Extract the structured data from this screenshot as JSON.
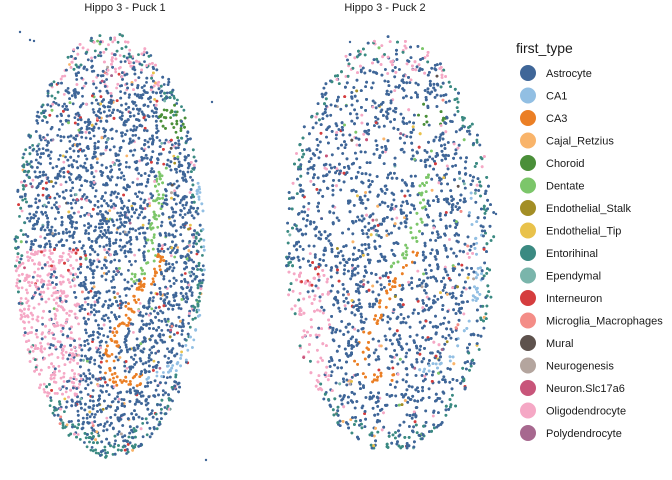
{
  "chart_data": {
    "type": "scatter",
    "panels": [
      {
        "title": "Hippo 3 - Puck 1"
      },
      {
        "title": "Hippo 3 - Puck 2"
      }
    ],
    "legend": {
      "title": "first_type",
      "placement": "right",
      "entries": [
        {
          "name": "Astrocyte",
          "color": "#3F6698"
        },
        {
          "name": "CA1",
          "color": "#92BFE3"
        },
        {
          "name": "CA3",
          "color": "#EB7F25"
        },
        {
          "name": "Cajal_Retzius",
          "color": "#F9B46A"
        },
        {
          "name": "Choroid",
          "color": "#4A8F39"
        },
        {
          "name": "Dentate",
          "color": "#7CC66A"
        },
        {
          "name": "Endothelial_Stalk",
          "color": "#A38E25"
        },
        {
          "name": "Endothelial_Tip",
          "color": "#E9C24B"
        },
        {
          "name": "Entorihinal",
          "color": "#3B8A82"
        },
        {
          "name": "Ependymal",
          "color": "#7AB5AB"
        },
        {
          "name": "Interneuron",
          "color": "#D53D3E"
        },
        {
          "name": "Microglia_Macrophages",
          "color": "#F48D87"
        },
        {
          "name": "Mural",
          "color": "#5E524D"
        },
        {
          "name": "Neurogenesis",
          "color": "#B4A59E"
        },
        {
          "name": "Neuron.Slc17a6",
          "color": "#C8557A"
        },
        {
          "name": "Oligodendrocyte",
          "color": "#F5A8C5"
        },
        {
          "name": "Polydendrocyte",
          "color": "#A7688F"
        }
      ]
    },
    "axes_visible": false,
    "grid": false
  }
}
